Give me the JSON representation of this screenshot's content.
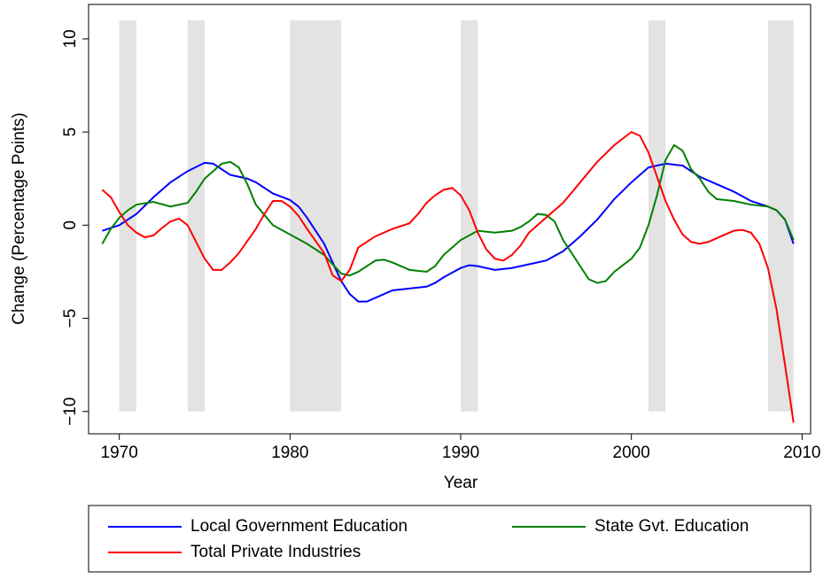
{
  "chart_data": {
    "type": "line",
    "xlabel": "Year",
    "ylabel": "Change (Percentage Points)",
    "xlim": [
      1968.2,
      2010.5
    ],
    "ylim": [
      -11.2,
      11.85
    ],
    "xticks": [
      1970,
      1980,
      1990,
      2000,
      2010
    ],
    "yticks": [
      {
        "value": -10,
        "label": "−10"
      },
      {
        "value": -5,
        "label": "−5"
      },
      0,
      5,
      10
    ],
    "shaded_periods": [
      [
        1970,
        1971
      ],
      [
        1974,
        1975
      ],
      [
        1980,
        1983
      ],
      [
        1990,
        1991
      ],
      [
        2001,
        2002
      ],
      [
        2008,
        2009.5
      ]
    ],
    "shade_range": [
      -10,
      11
    ],
    "shade_color": "#e3e3e3",
    "series": [
      {
        "name": "Local Government Education",
        "color": "#0000ff",
        "x": [
          1969,
          1970,
          1971,
          1972,
          1973,
          1974,
          1975,
          1975.5,
          1976,
          1976.5,
          1977.5,
          1978,
          1979,
          1980,
          1980.5,
          1981,
          1982,
          1982.5,
          1983,
          1983.5,
          1984,
          1984.5,
          1985,
          1986,
          1987,
          1988,
          1988.5,
          1989,
          1990,
          1990.5,
          1991,
          1992,
          1993,
          1994,
          1995,
          1996,
          1997,
          1998,
          1999,
          2000,
          2001,
          2002,
          2003,
          2004,
          2005,
          2006,
          2007,
          2008,
          2008.5,
          2009,
          2009.5
        ],
        "values": [
          -0.3,
          0.0,
          0.6,
          1.5,
          2.3,
          2.9,
          3.35,
          3.3,
          3.0,
          2.7,
          2.5,
          2.3,
          1.7,
          1.35,
          1.0,
          0.4,
          -1.0,
          -2.0,
          -3.0,
          -3.7,
          -4.1,
          -4.1,
          -3.9,
          -3.5,
          -3.4,
          -3.3,
          -3.1,
          -2.8,
          -2.3,
          -2.15,
          -2.2,
          -2.4,
          -2.3,
          -2.1,
          -1.9,
          -1.4,
          -0.6,
          0.3,
          1.4,
          2.3,
          3.1,
          3.3,
          3.2,
          2.6,
          2.2,
          1.8,
          1.3,
          1.0,
          0.8,
          0.3,
          -1.0
        ]
      },
      {
        "name": "State Gvt. Education",
        "color": "#008000",
        "x": [
          1969,
          1969.5,
          1970,
          1970.5,
          1971,
          1972,
          1973,
          1974,
          1974.5,
          1975,
          1976,
          1976.5,
          1977,
          1977.5,
          1978,
          1979,
          1980,
          1981,
          1982,
          1983,
          1983.5,
          1984,
          1985,
          1985.5,
          1986,
          1987,
          1988,
          1988.5,
          1989,
          1990,
          1991,
          1992,
          1993,
          1993.5,
          1994,
          1994.5,
          1995,
          1995.5,
          1996,
          1997,
          1997.5,
          1998,
          1998.5,
          1999,
          2000,
          2000.5,
          2001,
          2001.5,
          2002,
          2002.5,
          2003,
          2003.5,
          2004,
          2004.5,
          2005,
          2006,
          2007,
          2008,
          2008.5,
          2009,
          2009.5
        ],
        "values": [
          -1.0,
          -0.2,
          0.4,
          0.8,
          1.1,
          1.25,
          1.0,
          1.2,
          1.8,
          2.5,
          3.3,
          3.4,
          3.1,
          2.2,
          1.1,
          0.0,
          -0.5,
          -1.0,
          -1.6,
          -2.6,
          -2.7,
          -2.5,
          -1.9,
          -1.85,
          -2.0,
          -2.4,
          -2.5,
          -2.2,
          -1.6,
          -0.8,
          -0.3,
          -0.4,
          -0.3,
          -0.1,
          0.2,
          0.6,
          0.55,
          0.2,
          -0.8,
          -2.2,
          -2.9,
          -3.1,
          -3.0,
          -2.5,
          -1.8,
          -1.2,
          0.0,
          1.6,
          3.5,
          4.3,
          4.0,
          3.0,
          2.5,
          1.8,
          1.4,
          1.3,
          1.1,
          1.0,
          0.8,
          0.3,
          -0.8
        ]
      },
      {
        "name": "Total Private Industries",
        "color": "#ff0000",
        "x": [
          1969,
          1969.5,
          1970,
          1970.5,
          1971,
          1971.5,
          1972,
          1972.5,
          1973,
          1973.5,
          1974,
          1974.5,
          1975,
          1975.5,
          1976,
          1976.5,
          1977,
          1978,
          1978.5,
          1979,
          1979.5,
          1980,
          1980.5,
          1981,
          1982,
          1982.5,
          1983,
          1983.5,
          1984,
          1985,
          1986,
          1987,
          1987.5,
          1988,
          1988.5,
          1989,
          1989.5,
          1990,
          1990.5,
          1991,
          1991.5,
          1992,
          1992.5,
          1993,
          1993.5,
          1994,
          1995,
          1996,
          1997,
          1998,
          1999,
          2000,
          2000.5,
          2001,
          2001.5,
          2002,
          2002.5,
          2003,
          2003.5,
          2004,
          2004.5,
          2005,
          2006,
          2006.5,
          2007,
          2007.5,
          2008,
          2008.5,
          2009,
          2009.5
        ],
        "values": [
          1.9,
          1.5,
          0.7,
          0.0,
          -0.4,
          -0.65,
          -0.55,
          -0.15,
          0.2,
          0.35,
          0.0,
          -0.9,
          -1.8,
          -2.4,
          -2.4,
          -2.0,
          -1.5,
          -0.2,
          0.6,
          1.3,
          1.3,
          1.0,
          0.5,
          -0.2,
          -1.5,
          -2.7,
          -3.0,
          -2.4,
          -1.2,
          -0.6,
          -0.2,
          0.1,
          0.6,
          1.2,
          1.6,
          1.9,
          2.0,
          1.6,
          0.8,
          -0.4,
          -1.3,
          -1.8,
          -1.9,
          -1.6,
          -1.1,
          -0.4,
          0.4,
          1.2,
          2.3,
          3.4,
          4.3,
          5.0,
          4.8,
          3.9,
          2.6,
          1.3,
          0.3,
          -0.5,
          -0.9,
          -1.0,
          -0.9,
          -0.7,
          -0.3,
          -0.25,
          -0.4,
          -1.0,
          -2.3,
          -4.5,
          -7.5,
          -10.6
        ]
      }
    ]
  }
}
